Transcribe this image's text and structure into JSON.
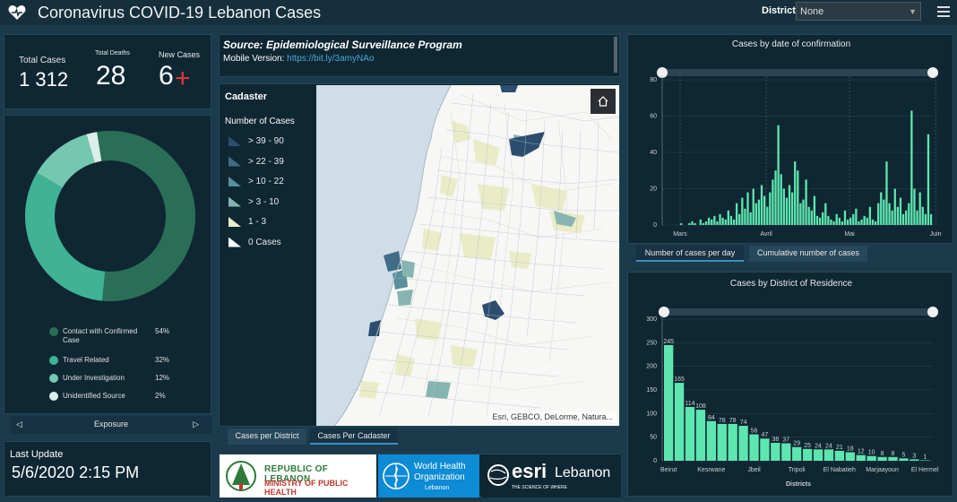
{
  "header": {
    "title": "Coronavirus COVID-19 Lebanon Cases",
    "district_label": "District",
    "district_value": "None"
  },
  "stats": {
    "total_cases_label": "Total Cases",
    "total_cases_value": "1 312",
    "total_deaths_label": "Total Deaths",
    "total_deaths_value": "28",
    "new_cases_label": "New Cases",
    "new_cases_value": "6"
  },
  "exposure": {
    "nav_label": "Exposure",
    "items": [
      {
        "label": "Contact with Confirmed Case",
        "pct": "54%",
        "color": "#2b6e57"
      },
      {
        "label": "Travel Related",
        "pct": "32%",
        "color": "#3fb394"
      },
      {
        "label": "Under Investigation",
        "pct": "12%",
        "color": "#74c8b0"
      },
      {
        "label": "Unidentified Source",
        "pct": "2%",
        "color": "#d9efe9"
      }
    ],
    "values": [
      54,
      32,
      12,
      2
    ]
  },
  "last_update": {
    "label": "Last Update",
    "value": "5/6/2020 2:15 PM"
  },
  "source": {
    "title": "Source: Epidemiological Surveillance Program",
    "mobile_label": "Mobile Version:",
    "mobile_link": "https://bit.ly/3amyNAo"
  },
  "map": {
    "legend_title": "Cadaster",
    "legend_subtitle": "Number of Cases",
    "legend_items": [
      {
        "label": "> 39 - 90",
        "color": "#2c4d6e"
      },
      {
        "label": "> 22 - 39",
        "color": "#3f6d86"
      },
      {
        "label": "> 10 - 22",
        "color": "#5a8f9c"
      },
      {
        "label": "> 3 - 10",
        "color": "#86b4b1"
      },
      {
        "label": "1 - 3",
        "color": "#e9ecc7"
      },
      {
        "label": "0 Cases",
        "color": "#ffffff"
      }
    ],
    "attribution": "Esri, GEBCO, DeLorme, Natura...",
    "home_icon": "home-icon",
    "tabs": [
      "Cases per District",
      "Cases Per Cadaster"
    ]
  },
  "logos": {
    "moph_line1": "REPUBLIC OF LEBANON",
    "moph_line2": "MINISTRY OF PUBLIC HEALTH",
    "who_line1": "World Health",
    "who_line2": "Organization",
    "who_line3": "Lebanon",
    "esri_word": "esri",
    "esri_country": "Lebanon",
    "esri_tag": "THE SCIENCE OF WHERE"
  },
  "daily_chart": {
    "tabs": [
      "Number of cases per day",
      "Cumulative number of cases"
    ]
  },
  "chart_data": [
    {
      "type": "bar",
      "title": "Cases by  date of confirmation",
      "ylim": [
        0,
        80
      ],
      "yticks": [
        0,
        20,
        40,
        60,
        80
      ],
      "xtick_labels": [
        "Mars",
        "Avril",
        "Mai",
        "Juin"
      ],
      "values": [
        1,
        0,
        0,
        1,
        2,
        1,
        0,
        3,
        1,
        2,
        4,
        3,
        5,
        2,
        6,
        4,
        3,
        8,
        5,
        3,
        12,
        6,
        15,
        9,
        18,
        7,
        20,
        12,
        14,
        22,
        16,
        10,
        18,
        25,
        30,
        55,
        28,
        20,
        15,
        22,
        18,
        35,
        30,
        12,
        14,
        25,
        10,
        8,
        16,
        5,
        4,
        7,
        12,
        5,
        3,
        2,
        6,
        4,
        2,
        8,
        3,
        4,
        6,
        9,
        2,
        3,
        5,
        4,
        10,
        3,
        2,
        12,
        18,
        14,
        35,
        12,
        8,
        20,
        10,
        15,
        6,
        8,
        12,
        63,
        20,
        8,
        18,
        10,
        6,
        50,
        6
      ],
      "tick_index": [
        0,
        31,
        61,
        92
      ]
    },
    {
      "type": "bar",
      "title": "Cases by District of Residence",
      "xlabel": "Districts",
      "ylim": [
        0,
        300
      ],
      "yticks": [
        0,
        50,
        100,
        150,
        200,
        250,
        300
      ],
      "categories_shown": [
        "Beirut",
        "Kesrwane",
        "Jbeil",
        "Tripoli",
        "El Nabatieh",
        "Marjaayoun",
        "El Hermel"
      ],
      "values": [
        245,
        165,
        114,
        108,
        84,
        78,
        78,
        74,
        56,
        47,
        38,
        37,
        29,
        25,
        24,
        24,
        21,
        18,
        12,
        10,
        8,
        8,
        5,
        3,
        1
      ],
      "label_positions": [
        0,
        4,
        8,
        12,
        16,
        20,
        24
      ]
    }
  ]
}
